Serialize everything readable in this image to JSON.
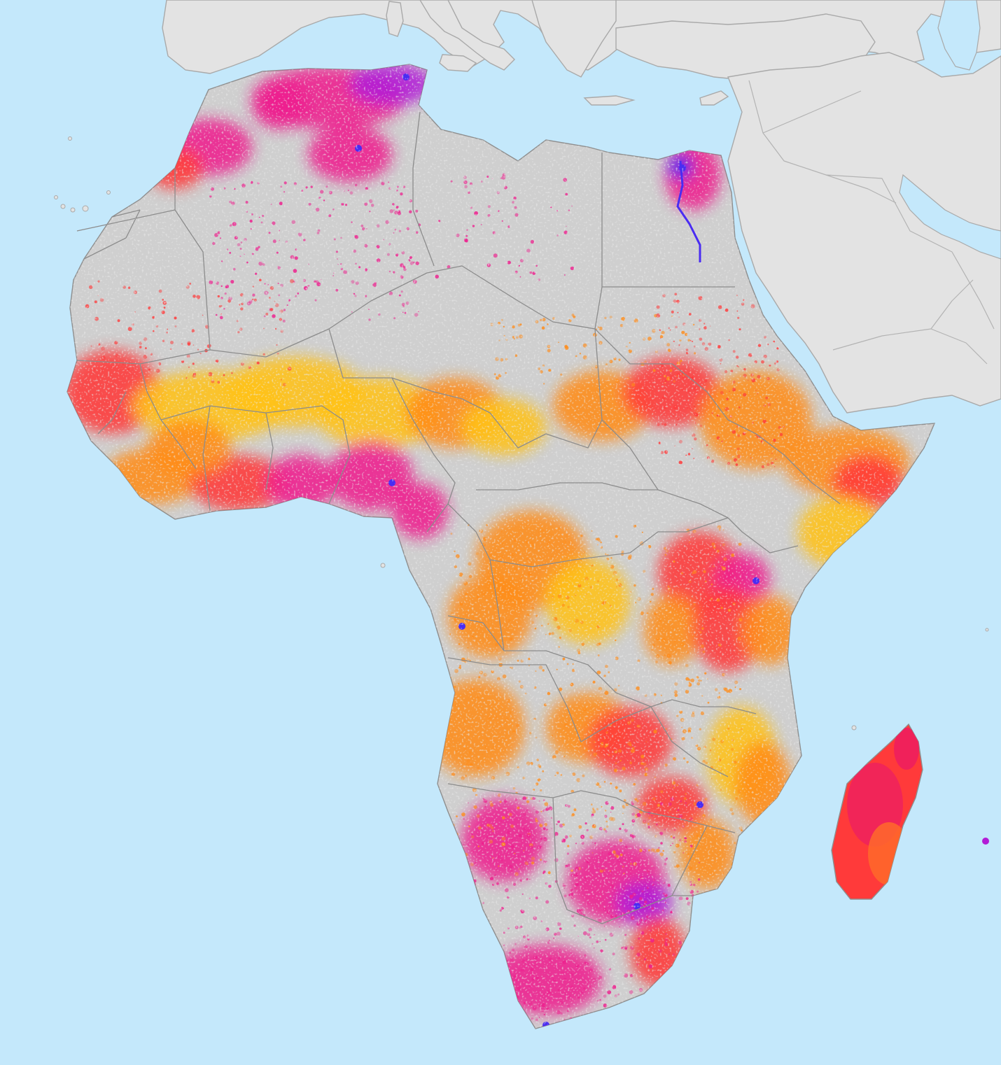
{
  "map": {
    "colors": {
      "ocean": "#c4e8fb",
      "other_land": "#e3e3e3",
      "africa_base": "#cfcfcf",
      "border_line": "#8c8c8c",
      "scale_yellow": "#ffc21a",
      "scale_orange": "#ff8c1a",
      "scale_red": "#ff3a3a",
      "scale_magenta": "#ee1f8e",
      "scale_violet": "#b21cd6",
      "scale_blue": "#4a2cf2"
    }
  }
}
